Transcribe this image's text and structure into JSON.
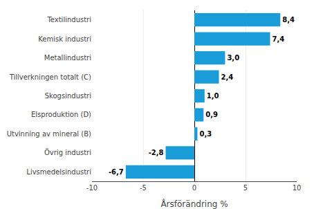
{
  "chart_data": {
    "type": "bar",
    "orientation": "horizontal",
    "categories": [
      "Livsmedelsindustri",
      "Övrig industri",
      "Utvinning av mineral (B)",
      "Elsproduktion (D)",
      "Skogsindustri",
      "Tillverkningen totalt (C)",
      "Metallindustri",
      "Kemisk industri",
      "Textilindustri"
    ],
    "values": [
      -6.7,
      -2.8,
      0.3,
      0.9,
      1.0,
      2.4,
      3.0,
      7.4,
      8.4
    ],
    "value_labels": [
      "-6,7",
      "-2,8",
      "0,3",
      "0,9",
      "1,0",
      "2,4",
      "3,0",
      "7,4",
      "8,4"
    ],
    "color": "#1a9cd8",
    "xlabel": "Årsförändring %",
    "xlim": [
      -10,
      10
    ],
    "xticks": [
      -10,
      -5,
      0,
      5,
      10
    ],
    "grid": true,
    "data_labels": true
  }
}
